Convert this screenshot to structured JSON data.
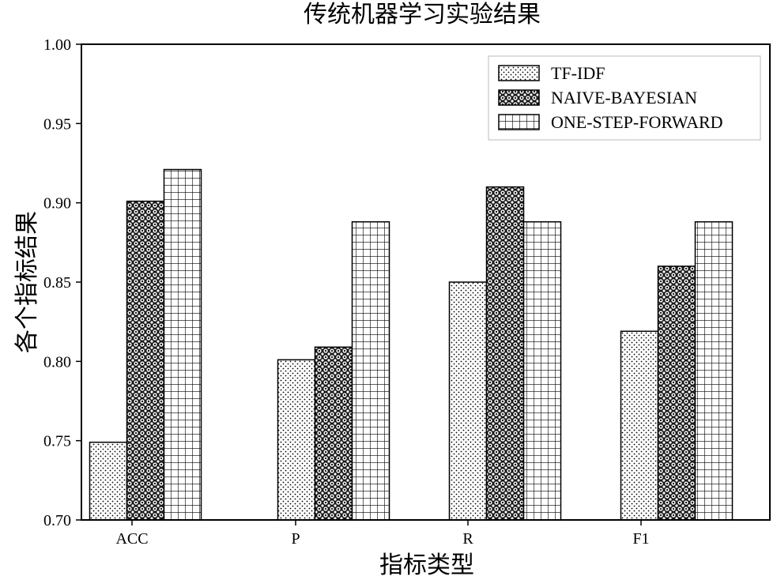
{
  "chart_data": {
    "type": "bar",
    "title": "传统机器学习实验结果",
    "xlabel": "指标类型",
    "ylabel": "各个指标结果",
    "categories": [
      "ACC",
      "P",
      "R",
      "F1"
    ],
    "ylim": [
      0.7,
      1.0
    ],
    "yticks": [
      0.7,
      0.75,
      0.8,
      0.85,
      0.9,
      0.95,
      1.0
    ],
    "ytick_labels": [
      "0.70",
      "0.75",
      "0.80",
      "0.85",
      "0.90",
      "0.95",
      "1.00"
    ],
    "grid": false,
    "legend_position": "top-right",
    "series": [
      {
        "name": "TF-IDF",
        "pattern": "dots",
        "values": [
          0.749,
          0.801,
          0.85,
          0.819
        ]
      },
      {
        "name": "NAIVE-BAYESIAN",
        "pattern": "circles",
        "values": [
          0.901,
          0.809,
          0.91,
          0.86
        ]
      },
      {
        "name": "ONE-STEP-FORWARD",
        "pattern": "grid",
        "values": [
          0.921,
          0.888,
          0.888,
          0.888
        ]
      }
    ]
  }
}
